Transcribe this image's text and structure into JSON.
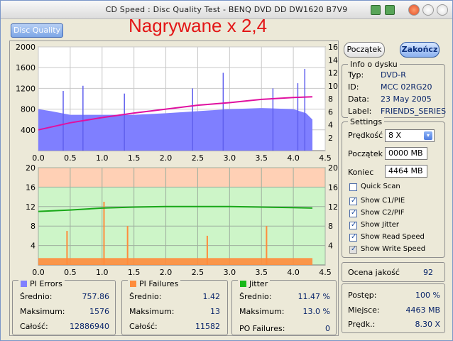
{
  "window": {
    "title": "CD Speed : Disc Quality Test - BENQ     DVD DD DW1620     B7V9"
  },
  "tab": {
    "label": "Disc Quality"
  },
  "overlay_text": "Nagrywane x 2,4",
  "buttons": {
    "start": "Początek",
    "end": "Zakończ"
  },
  "disc_info": {
    "title": "Info o dysku",
    "rows": [
      {
        "k": "Typ:",
        "v": "DVD-R"
      },
      {
        "k": "ID:",
        "v": "MCC 02RG20"
      },
      {
        "k": "Data:",
        "v": "23 May 2005"
      },
      {
        "k": "Label:",
        "v": "FRIENDS_SERIES"
      }
    ]
  },
  "settings": {
    "title": "Settings",
    "speed_label": "Prędkość",
    "speed_value": "8 X",
    "start_label": "Początek",
    "start_value": "0000 MB",
    "end_label": "Koniec",
    "end_value": "4464 MB",
    "checks": [
      {
        "label": "Quick Scan",
        "checked": false,
        "disabled": false
      },
      {
        "label": "Show C1/PIE",
        "checked": true,
        "disabled": false
      },
      {
        "label": "Show C2/PIF",
        "checked": true,
        "disabled": false
      },
      {
        "label": "Show Jitter",
        "checked": true,
        "disabled": false
      },
      {
        "label": "Show Read Speed",
        "checked": true,
        "disabled": false
      },
      {
        "label": "Show Write Speed",
        "checked": true,
        "disabled": true
      }
    ]
  },
  "score": {
    "label": "Ocena jakość",
    "value": "92"
  },
  "progress": {
    "rows": [
      {
        "k": "Postęp:",
        "v": "100 %"
      },
      {
        "k": "Miejsce:",
        "v": "4463 MB"
      },
      {
        "k": "Prędk.:",
        "v": "8.30 X"
      }
    ]
  },
  "stats": {
    "pi_errors": {
      "title": "PI Errors",
      "color": "#8080ff",
      "rows": [
        {
          "k": "Średnio:",
          "v": "757.86"
        },
        {
          "k": "Maksimum:",
          "v": "1576"
        },
        {
          "k": "Całość:",
          "v": "12886940"
        }
      ]
    },
    "pi_failures": {
      "title": "PI Failures",
      "color": "#ff8c3c",
      "rows": [
        {
          "k": "Średnio:",
          "v": "1.42"
        },
        {
          "k": "Maksimum:",
          "v": "13"
        },
        {
          "k": "Całość:",
          "v": "11582"
        }
      ]
    },
    "jitter": {
      "title": "Jitter",
      "color": "#18b818",
      "rows": [
        {
          "k": "Średnio:",
          "v": "11.47 %"
        },
        {
          "k": "Maksimum:",
          "v": "13.0 %"
        }
      ]
    },
    "po_failures": {
      "k": "PO Failures:",
      "v": "0"
    }
  },
  "chart_data": [
    {
      "type": "area",
      "title": "",
      "x_ticks": [
        "0.0",
        "0.5",
        "1.0",
        "1.5",
        "2.0",
        "2.5",
        "3.0",
        "3.5",
        "4.0",
        "4.5"
      ],
      "xlim": [
        0,
        4.5
      ],
      "y_left_ticks": [
        "2000",
        "1600",
        "1200",
        "800",
        "400"
      ],
      "ylim_left": [
        0,
        2000
      ],
      "y_right_ticks": [
        "16",
        "14",
        "12",
        "10",
        "8",
        "6",
        "4",
        "2"
      ],
      "ylim_right": [
        0,
        16
      ],
      "series": [
        {
          "name": "PI Errors",
          "type": "area",
          "color": "#7f7fff",
          "x": [
            0.0,
            0.2,
            0.5,
            0.8,
            1.0,
            1.5,
            2.0,
            2.5,
            3.0,
            3.5,
            4.0,
            4.2,
            4.3
          ],
          "values": [
            800,
            760,
            690,
            690,
            690,
            690,
            720,
            760,
            800,
            820,
            800,
            720,
            600
          ],
          "spikes": [
            {
              "x": 0.39,
              "v": 1150
            },
            {
              "x": 0.7,
              "v": 1250
            },
            {
              "x": 1.35,
              "v": 1100
            },
            {
              "x": 2.42,
              "v": 1200
            },
            {
              "x": 2.9,
              "v": 1500
            },
            {
              "x": 3.68,
              "v": 1200
            },
            {
              "x": 4.07,
              "v": 1300
            },
            {
              "x": 4.18,
              "v": 1576
            }
          ]
        },
        {
          "name": "Read Speed",
          "type": "line",
          "color": "#e010a0",
          "x": [
            0.0,
            0.5,
            1.0,
            1.5,
            2.0,
            2.5,
            3.0,
            3.5,
            4.0,
            4.3
          ],
          "values": [
            3.2,
            4.3,
            5.1,
            5.8,
            6.4,
            7.0,
            7.4,
            7.9,
            8.2,
            8.3
          ]
        }
      ]
    },
    {
      "type": "bar",
      "title": "",
      "x_ticks": [
        "0.0",
        "0.5",
        "1.0",
        "1.5",
        "2.0",
        "2.5",
        "3.0",
        "3.5",
        "4.0",
        "4.5"
      ],
      "xlim": [
        0,
        4.5
      ],
      "y_left_ticks": [
        "20",
        "16",
        "12",
        "8",
        "4"
      ],
      "ylim_left": [
        0,
        20
      ],
      "y_right_ticks": [
        "20",
        "16",
        "12",
        "8",
        "4"
      ],
      "ylim_right": [
        0,
        20
      ],
      "series": [
        {
          "name": "PI Failures",
          "type": "bar",
          "color": "#ff8c3c",
          "spikes": [
            {
              "x": 0.45,
              "v": 7
            },
            {
              "x": 1.03,
              "v": 13
            },
            {
              "x": 1.4,
              "v": 8
            },
            {
              "x": 2.65,
              "v": 6
            },
            {
              "x": 3.58,
              "v": 8
            }
          ],
          "baseline_avg": 1.42
        },
        {
          "name": "Jitter",
          "type": "line",
          "color": "#18a818",
          "x": [
            0.0,
            0.5,
            1.0,
            1.5,
            2.0,
            2.5,
            3.0,
            3.5,
            4.0,
            4.3
          ],
          "values": [
            11.0,
            11.3,
            11.7,
            11.9,
            12.0,
            12.0,
            12.0,
            11.9,
            11.8,
            11.7
          ]
        }
      ],
      "bands": [
        {
          "from": 16,
          "to": 20,
          "color": "#ffd0b5"
        },
        {
          "from": 0,
          "to": 16,
          "color": "#cdf5c8"
        }
      ]
    }
  ]
}
